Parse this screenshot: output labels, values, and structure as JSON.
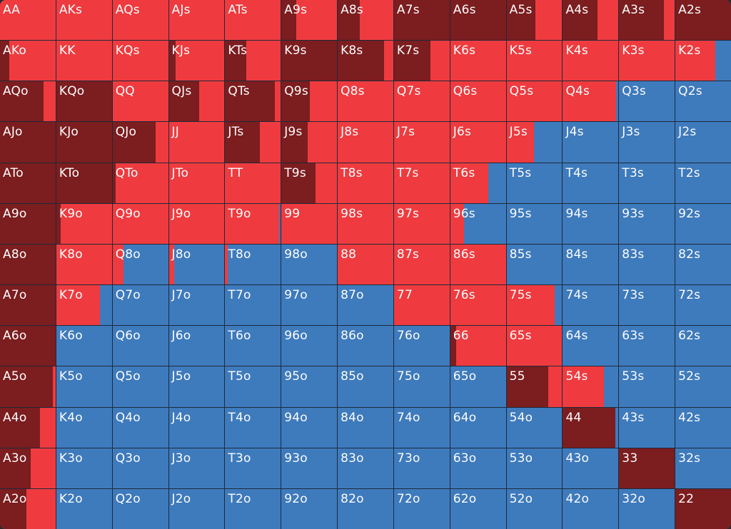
{
  "colors": {
    "raise": "#7c1d1f",
    "call": "#ef3b3f",
    "fold": "#3e7bbd"
  },
  "rows": [
    [
      [
        "AA",
        0,
        1
      ],
      [
        "AKs",
        0,
        1
      ],
      [
        "AQs",
        0,
        1
      ],
      [
        "AJs",
        0,
        1
      ],
      [
        "ATs",
        0,
        1
      ],
      [
        "A9s",
        0.27,
        0.73
      ],
      [
        "A8s",
        0.4,
        0.6
      ],
      [
        "A7s",
        1,
        0
      ],
      [
        "A6s",
        1,
        0
      ],
      [
        "A5s",
        0.52,
        0.48
      ],
      [
        "A4s",
        0.63,
        0.37
      ],
      [
        "A3s",
        0.81,
        0.19
      ],
      [
        "A2s",
        1,
        0
      ]
    ],
    [
      [
        "AKo",
        0.17,
        0.83
      ],
      [
        "KK",
        0,
        1
      ],
      [
        "KQs",
        0,
        1
      ],
      [
        "KJs",
        0.12,
        0.88
      ],
      [
        "KTs",
        0.38,
        0.62
      ],
      [
        "K9s",
        1,
        0
      ],
      [
        "K8s",
        0.84,
        0.16
      ],
      [
        "K7s",
        0.65,
        0.35
      ],
      [
        "K6s",
        0,
        1
      ],
      [
        "K5s",
        0,
        1
      ],
      [
        "K4s",
        0,
        1
      ],
      [
        "K3s",
        0,
        1
      ],
      [
        "K2s",
        0,
        0.72
      ]
    ],
    [
      [
        "AQo",
        0.78,
        0.22
      ],
      [
        "KQo",
        1,
        0
      ],
      [
        "QQ",
        0,
        1
      ],
      [
        "QJs",
        0.54,
        0.46
      ],
      [
        "QTs",
        0.89,
        0.11
      ],
      [
        "Q9s",
        0.51,
        0.49
      ],
      [
        "Q8s",
        0,
        1
      ],
      [
        "Q7s",
        0,
        1
      ],
      [
        "Q6s",
        0,
        1
      ],
      [
        "Q5s",
        0,
        1
      ],
      [
        "Q4s",
        0,
        0.96
      ],
      [
        "Q3s",
        0,
        0
      ],
      [
        "Q2s",
        0,
        0
      ]
    ],
    [
      [
        "AJo",
        1,
        0
      ],
      [
        "KJo",
        1,
        0
      ],
      [
        "QJo",
        0.78,
        0.22
      ],
      [
        "JJ",
        0,
        1
      ],
      [
        "JTs",
        0.62,
        0.38
      ],
      [
        "J9s",
        0.47,
        0.53
      ],
      [
        "J8s",
        0,
        1
      ],
      [
        "J7s",
        0,
        1
      ],
      [
        "J6s",
        0,
        1
      ],
      [
        "J5s",
        0,
        0.49
      ],
      [
        "J4s",
        0,
        0
      ],
      [
        "J3s",
        0,
        0
      ],
      [
        "J2s",
        0,
        0
      ]
    ],
    [
      [
        "ATo",
        1,
        0
      ],
      [
        "KTo",
        1,
        0
      ],
      [
        "QTo",
        0.05,
        0.95
      ],
      [
        "JTo",
        0,
        1
      ],
      [
        "TT",
        0,
        1
      ],
      [
        "T9s",
        0.61,
        0.39
      ],
      [
        "T8s",
        0,
        1
      ],
      [
        "T7s",
        0,
        1
      ],
      [
        "T6s",
        0,
        0.69
      ],
      [
        "T5s",
        0,
        0
      ],
      [
        "T4s",
        0,
        0
      ],
      [
        "T3s",
        0,
        0
      ],
      [
        "T2s",
        0,
        0
      ]
    ],
    [
      [
        "A9o",
        1,
        0
      ],
      [
        "K9o",
        0.08,
        0.92
      ],
      [
        "Q9o",
        0,
        1
      ],
      [
        "J9o",
        0,
        1
      ],
      [
        "T9o",
        0,
        0.97
      ],
      [
        "99",
        0,
        1
      ],
      [
        "98s",
        0,
        1
      ],
      [
        "97s",
        0,
        1
      ],
      [
        "96s",
        0,
        0.25
      ],
      [
        "95s",
        0,
        0
      ],
      [
        "94s",
        0,
        0
      ],
      [
        "93s",
        0,
        0
      ],
      [
        "92s",
        0,
        0
      ]
    ],
    [
      [
        "A8o",
        1,
        0
      ],
      [
        "K8o",
        0,
        1
      ],
      [
        "Q8o",
        0,
        0.2
      ],
      [
        "J8o",
        0,
        0.09
      ],
      [
        "T8o",
        0,
        0.05
      ],
      [
        "98o",
        0,
        0
      ],
      [
        "88",
        0,
        1
      ],
      [
        "87s",
        0,
        1
      ],
      [
        "86s",
        0,
        1
      ],
      [
        "85s",
        0,
        0
      ],
      [
        "84s",
        0,
        0
      ],
      [
        "83s",
        0,
        0
      ],
      [
        "82s",
        0,
        0
      ]
    ],
    [
      [
        "A7o",
        1,
        0
      ],
      [
        "K7o",
        0,
        0.78
      ],
      [
        "Q7o",
        0,
        0
      ],
      [
        "J7o",
        0,
        0
      ],
      [
        "T7o",
        0,
        0
      ],
      [
        "97o",
        0,
        0
      ],
      [
        "87o",
        0,
        0
      ],
      [
        "77",
        0,
        1
      ],
      [
        "76s",
        0,
        1
      ],
      [
        "75s",
        0,
        0.87
      ],
      [
        "74s",
        0,
        0
      ],
      [
        "73s",
        0,
        0
      ],
      [
        "72s",
        0,
        0
      ]
    ],
    [
      [
        "A6o",
        1,
        0
      ],
      [
        "K6o",
        0,
        0
      ],
      [
        "Q6o",
        0,
        0
      ],
      [
        "J6o",
        0,
        0
      ],
      [
        "T6o",
        0,
        0
      ],
      [
        "96o",
        0,
        0
      ],
      [
        "86o",
        0,
        0
      ],
      [
        "76o",
        0,
        0
      ],
      [
        "66",
        0.1,
        0.9
      ],
      [
        "65s",
        0,
        1
      ],
      [
        "64s",
        0,
        0
      ],
      [
        "63s",
        0,
        0
      ],
      [
        "62s",
        0,
        0
      ]
    ],
    [
      [
        "A5o",
        0.95,
        0.05
      ],
      [
        "K5o",
        0,
        0
      ],
      [
        "Q5o",
        0,
        0
      ],
      [
        "J5o",
        0,
        0
      ],
      [
        "T5o",
        0,
        0
      ],
      [
        "95o",
        0,
        0
      ],
      [
        "85o",
        0,
        0
      ],
      [
        "75o",
        0,
        0
      ],
      [
        "65o",
        0,
        0
      ],
      [
        "55",
        0.75,
        0.25
      ],
      [
        "54s",
        0,
        0.74
      ],
      [
        "53s",
        0,
        0
      ],
      [
        "52s",
        0,
        0
      ]
    ],
    [
      [
        "A4o",
        0.72,
        0.28
      ],
      [
        "K4o",
        0,
        0
      ],
      [
        "Q4o",
        0,
        0
      ],
      [
        "J4o",
        0,
        0
      ],
      [
        "T4o",
        0,
        0
      ],
      [
        "94o",
        0,
        0
      ],
      [
        "84o",
        0,
        0
      ],
      [
        "74o",
        0,
        0
      ],
      [
        "64o",
        0,
        0
      ],
      [
        "54o",
        0,
        0
      ],
      [
        "44",
        0.95,
        0
      ],
      [
        "43s",
        0,
        0
      ],
      [
        "42s",
        0,
        0
      ]
    ],
    [
      [
        "A3o",
        0.55,
        0.45
      ],
      [
        "K3o",
        0,
        0
      ],
      [
        "Q3o",
        0,
        0
      ],
      [
        "J3o",
        0,
        0
      ],
      [
        "T3o",
        0,
        0
      ],
      [
        "93o",
        0,
        0
      ],
      [
        "83o",
        0,
        0
      ],
      [
        "73o",
        0,
        0
      ],
      [
        "63o",
        0,
        0
      ],
      [
        "53o",
        0,
        0
      ],
      [
        "43o",
        0,
        0
      ],
      [
        "33",
        1,
        0
      ],
      [
        "32s",
        0,
        0
      ]
    ],
    [
      [
        "A2o",
        0.47,
        0.53
      ],
      [
        "K2o",
        0,
        0
      ],
      [
        "Q2o",
        0,
        0
      ],
      [
        "J2o",
        0,
        0
      ],
      [
        "T2o",
        0,
        0
      ],
      [
        "92o",
        0,
        0
      ],
      [
        "82o",
        0,
        0
      ],
      [
        "72o",
        0,
        0
      ],
      [
        "62o",
        0,
        0
      ],
      [
        "52o",
        0,
        0
      ],
      [
        "42o",
        0,
        0
      ],
      [
        "32o",
        0,
        0
      ],
      [
        "22",
        1,
        0
      ]
    ]
  ]
}
